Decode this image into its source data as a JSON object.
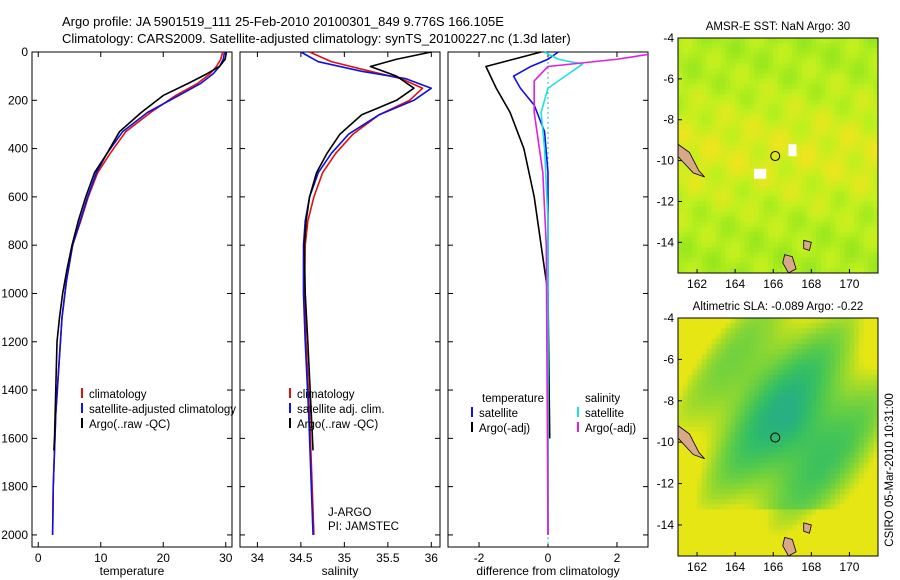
{
  "header": {
    "line1": "Argo profile: JA 5901519_111 25-Feb-2010 20100301_849 9.776S 166.105E",
    "line2": "Climatology: CARS2009. Satellite-adjusted climatology: synTS_20100227.nc (1.3d later)"
  },
  "footer_stamp": "CSIRO 05-Mar-2010 10:31:00",
  "colors": {
    "climatology": "#e01010",
    "satellite": "#1010e0",
    "argo": "#000000",
    "sal_satellite": "#20e0e0",
    "sal_argo": "#e020e0",
    "zero_line": "#20c0c0"
  },
  "chart_data": [
    {
      "type": "line",
      "xlabel": "temperature",
      "ylabel": "",
      "xlim": [
        -1,
        31
      ],
      "ylim": [
        2050,
        0
      ],
      "xticks": [
        "0",
        "10",
        "20",
        "30"
      ],
      "yticks": [
        "0",
        "200",
        "400",
        "600",
        "800",
        "1000",
        "1200",
        "1400",
        "1600",
        "1800",
        "2000"
      ],
      "legend": [
        "climatology",
        "satellite-adjusted climatology",
        "Argo(..raw -QC)"
      ],
      "series": [
        {
          "name": "climatology",
          "color": "#e01010",
          "x": [
            29.5,
            29.2,
            28.5,
            27.5,
            25.5,
            22,
            18,
            14,
            11.5,
            9.5,
            8,
            6.8,
            5.5,
            4.5,
            3.8,
            3.3,
            2.8,
            2.4,
            2.3
          ],
          "y": [
            0,
            30,
            60,
            90,
            130,
            180,
            250,
            330,
            420,
            500,
            600,
            700,
            800,
            950,
            1100,
            1300,
            1500,
            1800,
            2000
          ]
        },
        {
          "name": "satellite-adjusted climatology",
          "color": "#1010e0",
          "x": [
            29.8,
            29.6,
            29.0,
            28.0,
            26.0,
            22.5,
            17.5,
            13.5,
            11.0,
            9.3,
            7.9,
            6.7,
            5.5,
            4.5,
            3.8,
            3.3,
            2.8,
            2.4,
            2.3
          ],
          "y": [
            0,
            30,
            60,
            90,
            130,
            180,
            250,
            330,
            420,
            500,
            600,
            700,
            800,
            950,
            1100,
            1300,
            1500,
            1800,
            2000
          ]
        },
        {
          "name": "Argo(..raw -QC)",
          "color": "#000000",
          "x": [
            30.1,
            29.9,
            29.0,
            27.0,
            24.0,
            20.0,
            16.5,
            13.0,
            11.0,
            9.0,
            7.6,
            6.4,
            5.4,
            4.6,
            3.9,
            3.4,
            3.0,
            2.8,
            2.6,
            2.5
          ],
          "y": [
            0,
            30,
            60,
            90,
            130,
            180,
            250,
            330,
            420,
            500,
            600,
            700,
            800,
            900,
            1000,
            1100,
            1200,
            1400,
            1600,
            1650
          ]
        }
      ]
    },
    {
      "type": "line",
      "xlabel": "salinity",
      "xlim": [
        33.8,
        36.1
      ],
      "ylim": [
        2050,
        0
      ],
      "xticks": [
        "34",
        "34.5",
        "35",
        "35.5",
        "36"
      ],
      "legend": [
        "climatology",
        "satellite adj. clim.",
        "Argo(..raw -QC)"
      ],
      "annotation": [
        "J-ARGO",
        "PI: JAMSTEC"
      ],
      "series": [
        {
          "name": "climatology",
          "color": "#e01010",
          "x": [
            34.6,
            34.85,
            35.3,
            35.65,
            35.9,
            35.75,
            35.4,
            35.1,
            34.9,
            34.75,
            34.65,
            34.58,
            34.55,
            34.54,
            34.56,
            34.6,
            34.63,
            34.65
          ],
          "y": [
            0,
            40,
            80,
            110,
            150,
            200,
            260,
            340,
            420,
            500,
            600,
            700,
            800,
            1000,
            1200,
            1500,
            1800,
            2000
          ]
        },
        {
          "name": "satellite adj. clim.",
          "color": "#1010e0",
          "x": [
            34.5,
            34.7,
            35.2,
            35.7,
            36.0,
            35.8,
            35.4,
            35.05,
            34.85,
            34.7,
            34.6,
            34.55,
            34.53,
            34.53,
            34.55,
            34.59,
            34.62,
            34.64
          ],
          "y": [
            0,
            40,
            80,
            110,
            150,
            200,
            260,
            340,
            420,
            500,
            600,
            700,
            800,
            1000,
            1200,
            1500,
            1800,
            2000
          ]
        },
        {
          "name": "Argo(..raw -QC)",
          "color": "#000000",
          "x": [
            36.0,
            35.6,
            35.3,
            35.6,
            35.8,
            35.6,
            35.2,
            34.95,
            34.8,
            34.68,
            34.6,
            34.56,
            34.54,
            34.55,
            34.58,
            34.62,
            34.64
          ],
          "y": [
            0,
            30,
            60,
            100,
            150,
            200,
            260,
            340,
            420,
            500,
            600,
            700,
            800,
            1000,
            1200,
            1500,
            1650
          ]
        }
      ]
    },
    {
      "type": "line",
      "xlabel": "difference from climatology",
      "xlim": [
        -2.9,
        2.9
      ],
      "ylim": [
        2050,
        0
      ],
      "xticks": [
        "-2",
        "0",
        "2"
      ],
      "legend_temperature": [
        "temperature",
        "satellite",
        "Argo(-adj)"
      ],
      "legend_salinity": [
        "salinity",
        "satellite",
        "Argo(-adj)"
      ],
      "series": [
        {
          "name": "satellite",
          "color": "#1010e0",
          "x": [
            0.3,
            0.0,
            -0.5,
            -1.0,
            -0.8,
            -0.4,
            -0.1,
            0.0,
            0.0,
            0.0
          ],
          "y": [
            0,
            30,
            60,
            100,
            150,
            220,
            330,
            500,
            1000,
            2000
          ]
        },
        {
          "name": "Argo(-adj)",
          "color": "#000000",
          "x": [
            -0.2,
            -1.8,
            -1.5,
            -1.1,
            -0.7,
            -0.4,
            -0.2,
            0.0,
            0.05
          ],
          "y": [
            0,
            60,
            150,
            250,
            400,
            600,
            800,
            1000,
            1600
          ]
        },
        {
          "name": "satellite",
          "color": "#20e0e0",
          "x": [
            -0.1,
            0.3,
            1.0,
            0.5,
            0.0,
            -0.2,
            -0.1,
            0.0,
            0.0
          ],
          "y": [
            0,
            30,
            50,
            100,
            150,
            250,
            400,
            700,
            2000
          ]
        },
        {
          "name": "Argo(-adj)",
          "color": "#e020e0",
          "x": [
            2.9,
            2.0,
            0.0,
            -0.4,
            -0.4,
            -0.3,
            -0.15,
            -0.05,
            0.0
          ],
          "y": [
            10,
            30,
            60,
            120,
            250,
            350,
            500,
            800,
            2000
          ]
        }
      ]
    },
    {
      "type": "heatmap",
      "title": "AMSR-E SST: NaN Argo: 30",
      "xlim": [
        161,
        171.5
      ],
      "ylim": [
        -15.5,
        -4
      ],
      "xticks": [
        "162",
        "164",
        "166",
        "168",
        "170"
      ],
      "yticks": [
        "-4",
        "-6",
        "-8",
        "-10",
        "-12",
        "-14"
      ],
      "profile_location": {
        "lon": 166.105,
        "lat": -9.776
      }
    },
    {
      "type": "heatmap",
      "title": "Altimetric SLA: -0.089 Argo: -0.22",
      "xlim": [
        161,
        171.5
      ],
      "ylim": [
        -15.5,
        -4
      ],
      "xticks": [
        "162",
        "164",
        "166",
        "168",
        "170"
      ],
      "yticks": [
        "-4",
        "-6",
        "-8",
        "-10",
        "-12",
        "-14"
      ],
      "profile_location": {
        "lon": 166.105,
        "lat": -9.776
      }
    }
  ]
}
